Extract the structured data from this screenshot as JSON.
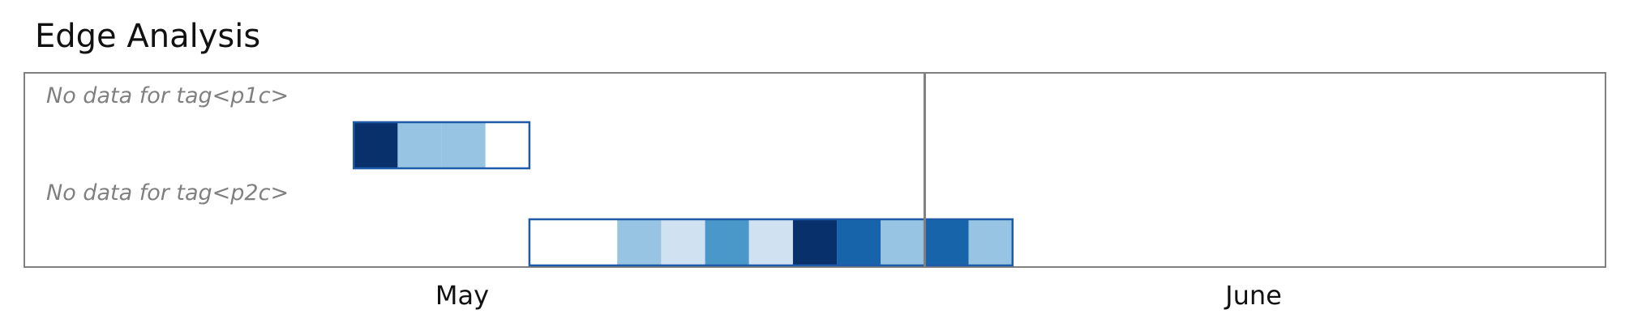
{
  "title": "Edge Analysis",
  "chart_data": {
    "type": "heatmap",
    "title": "Edge Analysis",
    "x_ticks": [
      "May",
      "June"
    ],
    "colors": {
      "0": "#ffffff",
      "1": "#d0e1f2",
      "2": "#97c4e2",
      "3": "#4a97c9",
      "4": "#1764ab",
      "5": "#08306b",
      "border": "#1f5ba8",
      "frame": "#808080",
      "divider": "#808080"
    },
    "rows": [
      {
        "no_data_label": "No data for tag<p1c>",
        "start_day": -3,
        "cells": [
          5,
          2,
          2,
          0
        ]
      },
      {
        "no_data_label": "No data for tag<p2c>",
        "start_day": 1,
        "cells": [
          0,
          0,
          2,
          1,
          3,
          1,
          5,
          4,
          2,
          4,
          2
        ]
      }
    ],
    "divider_day": 10,
    "x_range_days": [
      -10.5,
      25.5
    ],
    "grid": false,
    "legend": "none"
  }
}
